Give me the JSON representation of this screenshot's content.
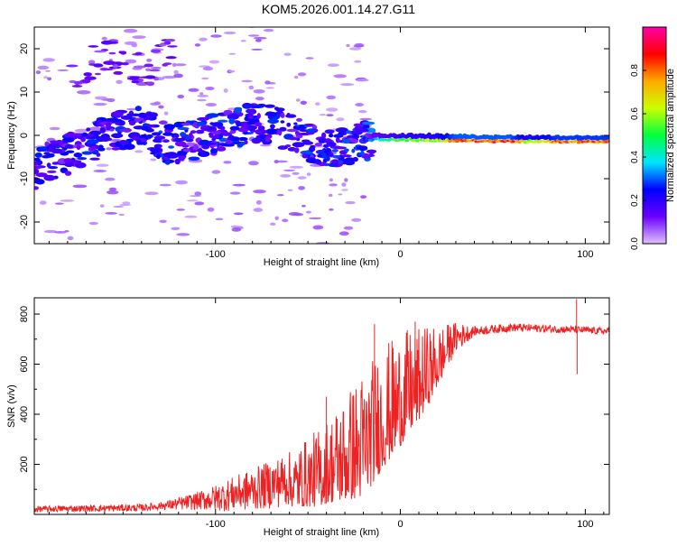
{
  "title": "KOM5.2026.001.14.27.G11",
  "chart_data": [
    {
      "type": "heatmap",
      "name": "spectrogram",
      "xlabel": "Height of straight line (km)",
      "ylabel": "Frequency (Hz)",
      "xlim": [
        -198,
        113
      ],
      "ylim": [
        -25,
        25
      ],
      "xticks": [
        -100,
        0,
        100
      ],
      "yticks": [
        -20,
        -10,
        0,
        10,
        20
      ],
      "xtick_labels": [
        "-100",
        "0",
        "100"
      ],
      "ytick_labels": [
        "-20",
        "-10",
        "0",
        "10",
        "20"
      ],
      "colorbar": {
        "label": "Normalized spectral amplitude",
        "range": [
          0,
          1
        ],
        "ticks": [
          0.0,
          0.2,
          0.4,
          0.6,
          0.8
        ],
        "tick_labels": [
          "0.0",
          "0.2",
          "0.4",
          "0.6",
          "0.8"
        ],
        "colors": [
          "#e0c2ff",
          "#6a00ff",
          "#0000ff",
          "#00e5ff",
          "#00ff40",
          "#ccff00",
          "#ffaa00",
          "#ff0000",
          "#ff00aa"
        ]
      },
      "ridge": [
        {
          "x": -198,
          "y": -8
        },
        {
          "x": -185,
          "y": -5
        },
        {
          "x": -170,
          "y": -3
        },
        {
          "x": -155,
          "y": 1
        },
        {
          "x": -140,
          "y": 2
        },
        {
          "x": -125,
          "y": -2
        },
        {
          "x": -110,
          "y": -1
        },
        {
          "x": -95,
          "y": 1
        },
        {
          "x": -80,
          "y": 3
        },
        {
          "x": -65,
          "y": 2
        },
        {
          "x": -50,
          "y": -2
        },
        {
          "x": -35,
          "y": -3
        },
        {
          "x": -20,
          "y": -1
        },
        {
          "x": -10,
          "y": -1
        },
        {
          "x": 0,
          "y": -1
        },
        {
          "x": 50,
          "y": -1.3
        },
        {
          "x": 113,
          "y": -1.5
        }
      ],
      "ridge_amplitude": [
        {
          "x": -198,
          "a": 0.22
        },
        {
          "x": -120,
          "a": 0.25
        },
        {
          "x": -20,
          "a": 0.25
        },
        {
          "x": -12,
          "a": 0.4
        },
        {
          "x": 0,
          "a": 0.55
        },
        {
          "x": 20,
          "a": 0.6
        },
        {
          "x": 30,
          "a": 0.85
        },
        {
          "x": 60,
          "a": 0.85
        },
        {
          "x": 70,
          "a": 0.6
        },
        {
          "x": 85,
          "a": 0.8
        },
        {
          "x": 113,
          "a": 0.8
        }
      ],
      "high_harmonic": [
        {
          "x": -175,
          "y": 19
        },
        {
          "x": -160,
          "y": 23
        },
        {
          "x": -135,
          "y": 19
        },
        {
          "x": -125,
          "y": 24
        }
      ]
    },
    {
      "type": "line",
      "name": "snr",
      "xlabel": "Height of straight line (km)",
      "ylabel": "SNR (v/v)",
      "xlim": [
        -198,
        113
      ],
      "ylim": [
        0,
        865
      ],
      "xticks": [
        -100,
        0,
        100
      ],
      "yticks": [
        200,
        400,
        600,
        800
      ],
      "xtick_labels": [
        "-100",
        "0",
        "100"
      ],
      "ytick_labels": [
        "200",
        "400",
        "600",
        "800"
      ],
      "color": "#ee2222",
      "trend": [
        {
          "x": -198,
          "y": 20
        },
        {
          "x": -140,
          "y": 25
        },
        {
          "x": -120,
          "y": 40
        },
        {
          "x": -100,
          "y": 60
        },
        {
          "x": -80,
          "y": 90
        },
        {
          "x": -60,
          "y": 130
        },
        {
          "x": -45,
          "y": 170
        },
        {
          "x": -30,
          "y": 250
        },
        {
          "x": -20,
          "y": 300
        },
        {
          "x": -10,
          "y": 400
        },
        {
          "x": 0,
          "y": 480
        },
        {
          "x": 10,
          "y": 540
        },
        {
          "x": 20,
          "y": 620
        },
        {
          "x": 30,
          "y": 700
        },
        {
          "x": 40,
          "y": 730
        },
        {
          "x": 60,
          "y": 745
        },
        {
          "x": 80,
          "y": 740
        },
        {
          "x": 113,
          "y": 730
        }
      ],
      "noise_amplitude": [
        {
          "x": -198,
          "y": 12
        },
        {
          "x": -130,
          "y": 15
        },
        {
          "x": -110,
          "y": 35
        },
        {
          "x": -90,
          "y": 70
        },
        {
          "x": -60,
          "y": 110
        },
        {
          "x": -40,
          "y": 170
        },
        {
          "x": -20,
          "y": 260
        },
        {
          "x": 0,
          "y": 230
        },
        {
          "x": 15,
          "y": 160
        },
        {
          "x": 28,
          "y": 70
        },
        {
          "x": 40,
          "y": 18
        },
        {
          "x": 113,
          "y": 14
        }
      ],
      "spikes": [
        {
          "x": 95.3,
          "y": 860
        },
        {
          "x": 95.6,
          "y": 560
        },
        {
          "x": 8,
          "y": 770
        },
        {
          "x": -14,
          "y": 760
        },
        {
          "x": -40,
          "y": 470
        }
      ]
    }
  ]
}
